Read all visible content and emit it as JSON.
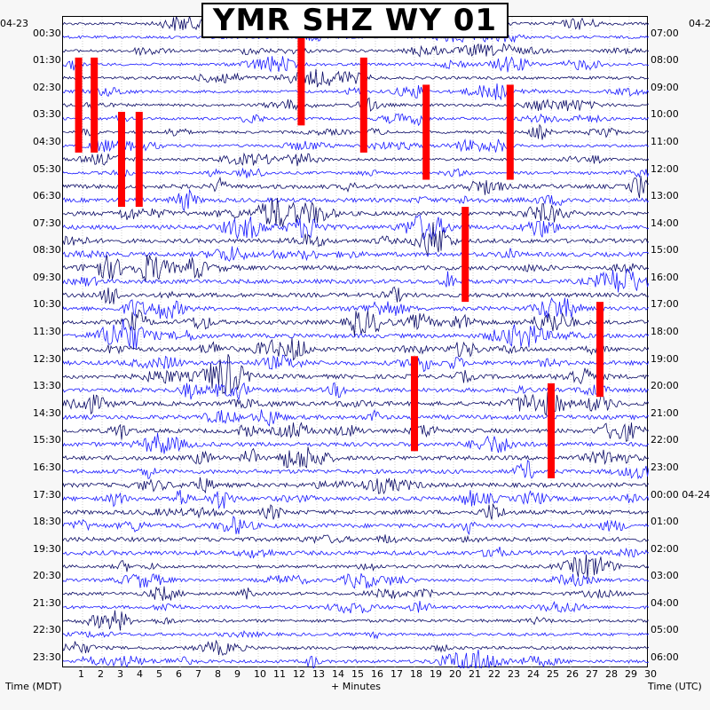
{
  "title": "YMR SHZ WY 01",
  "start_date_left": "04-23",
  "start_date_right": "04-2",
  "xlabel": "+ Minutes",
  "left_axis_label": "Time (MDT)",
  "right_axis_label": "Time (UTC)",
  "colors": {
    "trace_dark": "#0a0a66",
    "trace_blue": "#1a1aff",
    "clipped": "#ff0000",
    "grid": "#888888"
  },
  "chart_data": {
    "type": "helicorder",
    "x": [
      "1",
      "2",
      "3",
      "4",
      "5",
      "6",
      "7",
      "8",
      "9",
      "10",
      "11",
      "12",
      "13",
      "14",
      "15",
      "16",
      "17",
      "18",
      "19",
      "20",
      "21",
      "22",
      "23",
      "24",
      "25",
      "26",
      "27",
      "28",
      "29",
      "30"
    ],
    "xlim": [
      0,
      30
    ],
    "rows_per_hour": 2,
    "left_times": [
      "00:30",
      "01:30",
      "02:30",
      "03:30",
      "04:30",
      "05:30",
      "06:30",
      "07:30",
      "08:30",
      "09:30",
      "10:30",
      "11:30",
      "12:30",
      "13:30",
      "14:30",
      "15:30",
      "16:30",
      "17:30",
      "18:30",
      "19:30",
      "20:30",
      "21:30",
      "22:30",
      "23:30"
    ],
    "right_times": [
      "07:00",
      "08:00",
      "09:00",
      "10:00",
      "11:00",
      "12:00",
      "13:00",
      "14:00",
      "15:00",
      "16:00",
      "17:00",
      "18:00",
      "19:00",
      "20:00",
      "21:00",
      "22:00",
      "23:00",
      "00:00 04-24",
      "01:00",
      "02:00",
      "03:00",
      "04:00",
      "05:00",
      "06:00"
    ],
    "grid": true,
    "clipped_events": [
      {
        "row": 3,
        "minute": 0.8,
        "rows_span": 3.5
      },
      {
        "row": 3,
        "minute": 1.6,
        "rows_span": 3.5
      },
      {
        "row": 1,
        "minute": 12.2,
        "rows_span": 3.5
      },
      {
        "row": 3,
        "minute": 15.4,
        "rows_span": 3.5
      },
      {
        "row": 7,
        "minute": 3.0,
        "rows_span": 3.5
      },
      {
        "row": 5,
        "minute": 18.6,
        "rows_span": 3.5
      },
      {
        "row": 5,
        "minute": 22.9,
        "rows_span": 3.5
      },
      {
        "row": 7,
        "minute": 3.9,
        "rows_span": 3.5
      },
      {
        "row": 14,
        "minute": 20.6,
        "rows_span": 3.5
      },
      {
        "row": 21,
        "minute": 27.5,
        "rows_span": 3.5
      },
      {
        "row": 25,
        "minute": 18.0,
        "rows_span": 3.5
      },
      {
        "row": 27,
        "minute": 25.0,
        "rows_span": 3.5
      }
    ]
  }
}
